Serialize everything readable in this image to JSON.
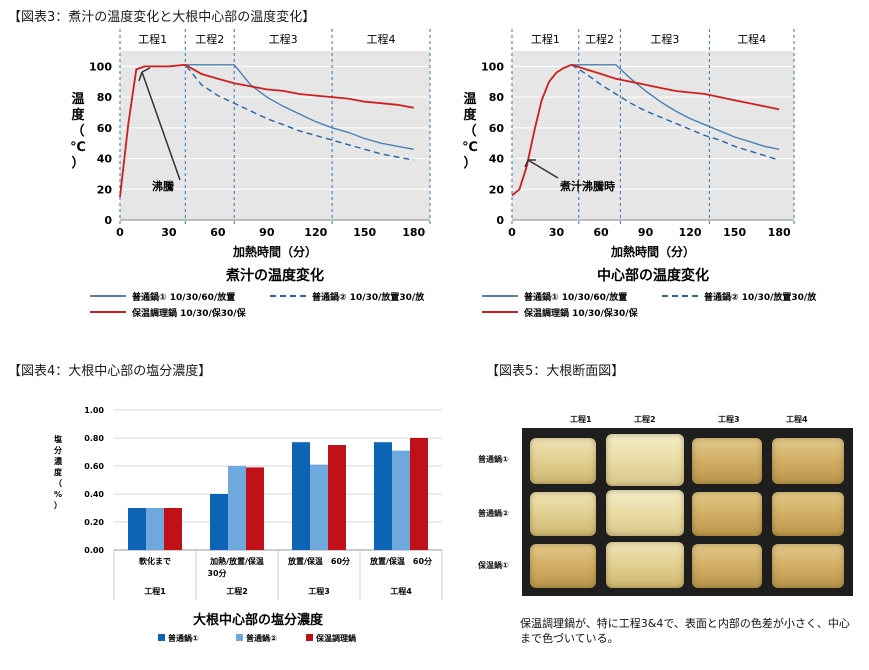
{
  "titles": {
    "fig3": "【図表3：煮汁の温度変化と大根中心部の温度変化】",
    "fig4": "【図表4：大根中心部の塩分濃度】",
    "fig5": "【図表5：大根断面図】"
  },
  "colors": {
    "series_normal1": "#4a7fb5",
    "series_normal2": "#2563a8",
    "series_insulated": "#d11f1f",
    "bar_normal1": "#0d64b4",
    "bar_normal2": "#6fa8dc",
    "bar_insulated": "#c0101a",
    "section_line": "#2e75b6"
  },
  "chart_data": [
    {
      "type": "line",
      "title": "煮汁の温度変化",
      "xlabel": "加熱時間（分）",
      "ylabel": "温度（℃）",
      "xlim": [
        0,
        190
      ],
      "ylim": [
        0,
        110
      ],
      "xticks": [
        0,
        30,
        60,
        90,
        120,
        150,
        180
      ],
      "yticks": [
        0,
        20,
        40,
        60,
        80,
        100
      ],
      "sections": [
        "工程1",
        "工程2",
        "工程3",
        "工程4"
      ],
      "section_bounds": [
        0,
        40,
        70,
        130,
        190
      ],
      "annotation": "沸騰",
      "series": [
        {
          "name": "普通鍋① 10/30/60/放置",
          "style": "solid",
          "x": [
            0,
            5,
            10,
            15,
            20,
            30,
            40,
            50,
            60,
            70,
            80,
            90,
            100,
            110,
            120,
            130,
            140,
            150,
            160,
            170,
            180
          ],
          "y": [
            15,
            62,
            98,
            100,
            100,
            100,
            101,
            101,
            101,
            101,
            88,
            80,
            74,
            69,
            64,
            60,
            57,
            53,
            50,
            48,
            46
          ]
        },
        {
          "name": "普通鍋② 10/30/放置30/放",
          "style": "dashed",
          "x": [
            0,
            5,
            10,
            15,
            20,
            30,
            40,
            50,
            60,
            70,
            80,
            90,
            100,
            110,
            120,
            130,
            140,
            150,
            160,
            170,
            180
          ],
          "y": [
            15,
            62,
            98,
            100,
            100,
            100,
            101,
            88,
            81,
            76,
            71,
            66,
            62,
            58,
            55,
            52,
            49,
            46,
            43,
            41,
            39
          ]
        },
        {
          "name": "保温調理鍋 10/30/保30/保",
          "style": "solid",
          "x": [
            0,
            5,
            10,
            15,
            20,
            30,
            40,
            50,
            60,
            70,
            80,
            90,
            100,
            110,
            120,
            130,
            140,
            150,
            160,
            170,
            180
          ],
          "y": [
            15,
            62,
            98,
            100,
            100,
            100,
            101,
            95,
            92,
            89,
            87,
            85,
            84,
            82,
            81,
            80,
            79,
            77,
            76,
            75,
            73
          ]
        }
      ]
    },
    {
      "type": "line",
      "title": "中心部の温度変化",
      "xlabel": "加熱時間（分）",
      "ylabel": "温度（℃）",
      "xlim": [
        0,
        190
      ],
      "ylim": [
        0,
        110
      ],
      "xticks": [
        0,
        30,
        60,
        90,
        120,
        150,
        180
      ],
      "yticks": [
        0,
        20,
        40,
        60,
        80,
        100
      ],
      "sections": [
        "工程1",
        "工程2",
        "工程3",
        "工程4"
      ],
      "section_bounds": [
        0,
        45,
        73,
        133,
        190
      ],
      "annotation": "煮汁沸騰時",
      "series": [
        {
          "name": "普通鍋① 10/30/60/放置",
          "style": "solid",
          "x": [
            0,
            5,
            10,
            15,
            20,
            25,
            30,
            35,
            40,
            50,
            60,
            70,
            80,
            90,
            100,
            110,
            120,
            130,
            140,
            150,
            160,
            170,
            180
          ],
          "y": [
            16,
            20,
            35,
            58,
            78,
            90,
            96,
            99,
            101,
            101,
            101,
            101,
            92,
            84,
            77,
            71,
            66,
            62,
            58,
            54,
            51,
            48,
            46
          ]
        },
        {
          "name": "普通鍋② 10/30/放置30/放",
          "style": "dashed",
          "x": [
            0,
            5,
            10,
            15,
            20,
            25,
            30,
            35,
            40,
            50,
            60,
            70,
            80,
            90,
            100,
            110,
            120,
            130,
            140,
            150,
            160,
            170,
            180
          ],
          "y": [
            16,
            20,
            35,
            58,
            78,
            90,
            96,
            99,
            101,
            95,
            88,
            82,
            76,
            71,
            67,
            63,
            59,
            55,
            52,
            48,
            45,
            42,
            39
          ]
        },
        {
          "name": "保温調理鍋 10/30/保30/保",
          "style": "solid",
          "x": [
            0,
            5,
            10,
            15,
            20,
            25,
            30,
            35,
            40,
            50,
            60,
            70,
            80,
            90,
            100,
            110,
            120,
            130,
            140,
            150,
            160,
            170,
            180
          ],
          "y": [
            16,
            20,
            35,
            58,
            78,
            90,
            96,
            99,
            101,
            98,
            95,
            92,
            90,
            88,
            86,
            84,
            83,
            82,
            80,
            78,
            76,
            74,
            72
          ]
        }
      ]
    },
    {
      "type": "bar",
      "title": "大根中心部の塩分濃度",
      "ylabel": "塩分濃度（%）",
      "ylim": [
        0,
        1.0
      ],
      "yticks": [
        "0.00",
        "0.20",
        "0.40",
        "0.60",
        "0.80",
        "1.00"
      ],
      "categories": [
        "軟化まで",
        "加熱/放置/保温 30分",
        "放置/保温　60分",
        "放置/保温　60分"
      ],
      "category_lines": [
        [
          "軟化まで"
        ],
        [
          "加熱/放置/保温",
          "30分"
        ],
        [
          "放置/保温　60分"
        ],
        [
          "放置/保温　60分"
        ]
      ],
      "sections": [
        "工程1",
        "工程2",
        "工程3",
        "工程4"
      ],
      "series": [
        {
          "name": "普通鍋①",
          "values": [
            0.3,
            0.4,
            0.77,
            0.77
          ]
        },
        {
          "name": "普通鍋②",
          "values": [
            0.3,
            0.6,
            0.61,
            0.71
          ]
        },
        {
          "name": "保温調理鍋",
          "values": [
            0.3,
            0.59,
            0.75,
            0.8
          ]
        }
      ]
    }
  ],
  "fig5": {
    "columns": [
      "工程1",
      "工程2",
      "工程3",
      "工程4"
    ],
    "rows": [
      "普通鍋①",
      "普通鍋②",
      "保温鍋①"
    ],
    "caption": "保温調理鍋が、特に工程3&4で、表面と内部の色差が小さく、中心まで色づいている。"
  }
}
